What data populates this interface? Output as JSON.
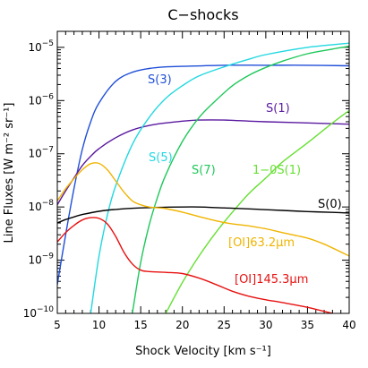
{
  "chart_data": {
    "type": "line",
    "title": "C−shocks",
    "xlabel": "Shock Velocity [km s⁻¹]",
    "ylabel": "Line Fluxes [W m⁻² sr⁻¹]",
    "xlim": [
      5,
      40
    ],
    "ylim": [
      1e-10,
      2e-05
    ],
    "yscale": "log",
    "x_ticks": [
      5,
      10,
      15,
      20,
      25,
      30,
      35,
      40
    ],
    "x_tick_labels": [
      "5",
      "10",
      "15",
      "20",
      "25",
      "30",
      "35",
      "40"
    ],
    "y_ticks": [
      1e-10,
      1e-09,
      1e-08,
      1e-07,
      1e-06,
      1e-05
    ],
    "y_tick_labels": [
      {
        "base": "10",
        "exp": "−10"
      },
      {
        "base": "10",
        "exp": "−9"
      },
      {
        "base": "10",
        "exp": "−8"
      },
      {
        "base": "10",
        "exp": "−7"
      },
      {
        "base": "10",
        "exp": "−6"
      },
      {
        "base": "10",
        "exp": "−5"
      }
    ],
    "grid": false,
    "legend": "none",
    "series": [
      {
        "name": "S(3)",
        "color": "#1f4fd8",
        "x": [
          5,
          6,
          7,
          8,
          9,
          10,
          12,
          14,
          16,
          18,
          20,
          25,
          30,
          35,
          40
        ],
        "y": [
          3.5e-10,
          3e-09,
          2.2e-08,
          1.2e-07,
          4e-07,
          9e-07,
          2.3e-06,
          3.4e-06,
          4e-06,
          4.3e-06,
          4.4e-06,
          4.6e-06,
          4.6e-06,
          4.6e-06,
          4.5e-06
        ]
      },
      {
        "name": "S(1)",
        "color": "#5a1aa0",
        "x": [
          5,
          6,
          7,
          8,
          9,
          10,
          12,
          14,
          16,
          18,
          20,
          22,
          25,
          28,
          30,
          35,
          40
        ],
        "y": [
          1.1e-08,
          2e-08,
          3.5e-08,
          6e-08,
          9e-08,
          1.25e-07,
          2e-07,
          2.8e-07,
          3.4e-07,
          3.8e-07,
          4.1e-07,
          4.3e-07,
          4.3e-07,
          4.1e-07,
          4e-07,
          3.8e-07,
          3.6e-07
        ]
      },
      {
        "name": "S(5)",
        "color": "#22d8e0",
        "x": [
          9,
          10,
          11,
          12,
          14,
          16,
          18,
          20,
          22,
          25,
          28,
          30,
          35,
          40
        ],
        "y": [
          1e-10,
          1.2e-09,
          7e-09,
          2.5e-08,
          1.5e-07,
          4.8e-07,
          1.1e-06,
          1.9e-06,
          2.9e-06,
          4.3e-06,
          6e-06,
          7.3e-06,
          1e-05,
          1.2e-05
        ]
      },
      {
        "name": "S(7)",
        "color": "#1ec85a",
        "x": [
          14,
          15,
          16,
          17,
          18,
          20,
          22,
          24,
          26,
          28,
          30,
          32,
          35,
          38,
          40
        ],
        "y": [
          1e-10,
          9e-10,
          4.5e-09,
          1.5e-08,
          4e-08,
          1.7e-07,
          4.8e-07,
          1e-06,
          1.9e-06,
          3e-06,
          4.2e-06,
          5.5e-06,
          7.6e-06,
          9.3e-06,
          1.05e-05
        ]
      },
      {
        "name": "1−0S(1)",
        "color": "#66e033",
        "x": [
          18,
          20,
          22,
          24,
          26,
          28,
          30,
          32,
          35,
          38,
          40
        ],
        "y": [
          1e-10,
          3.8e-10,
          1.2e-09,
          3.3e-09,
          8e-09,
          1.8e-08,
          3.5e-08,
          7e-08,
          1.6e-07,
          3.8e-07,
          6.5e-07
        ]
      },
      {
        "name": "S(0)",
        "color": "#000000",
        "x": [
          5,
          6,
          7,
          8,
          10,
          12,
          15,
          18,
          20,
          22,
          25,
          28,
          30,
          32,
          35,
          38,
          40
        ],
        "y": [
          5e-09,
          5.8e-09,
          6.5e-09,
          7.2e-09,
          8.3e-09,
          9e-09,
          9.6e-09,
          9.9e-09,
          1e-08,
          1e-08,
          9.6e-09,
          9.2e-09,
          8.9e-09,
          8.6e-09,
          8.2e-09,
          7.9e-09,
          7.7e-09
        ]
      },
      {
        "name": "[OI]63.2μm",
        "color": "#f0b400",
        "x": [
          5,
          6,
          7,
          8,
          9,
          10,
          11,
          12,
          13,
          14,
          15,
          16,
          18,
          20,
          22,
          25,
          28,
          30,
          32,
          35,
          37,
          40
        ],
        "y": [
          1.3e-08,
          2.2e-08,
          3.4e-08,
          5e-08,
          6.5e-08,
          6.6e-08,
          5e-08,
          3.1e-08,
          1.9e-08,
          1.3e-08,
          1.1e-08,
          1e-08,
          9.3e-09,
          8e-09,
          6.6e-09,
          5.1e-09,
          4.4e-09,
          3.9e-09,
          3.3e-09,
          2.6e-09,
          2e-09,
          1.2e-09
        ]
      },
      {
        "name": "[OI]145.3μm",
        "color": "#e81010",
        "x": [
          5,
          6,
          7,
          8,
          9,
          10,
          11,
          12,
          13,
          14,
          15,
          16,
          18,
          20,
          22,
          24,
          26,
          28,
          30,
          32,
          35,
          38,
          40
        ],
        "y": [
          2.2e-09,
          3.3e-09,
          4.5e-09,
          5.7e-09,
          6.3e-09,
          6.1e-09,
          4.8e-09,
          2.8e-09,
          1.4e-09,
          8.5e-10,
          6.5e-10,
          6.1e-10,
          5.9e-10,
          5.6e-10,
          4.6e-10,
          3.5e-10,
          2.6e-10,
          2.1e-10,
          1.8e-10,
          1.6e-10,
          1.3e-10,
          1e-10,
          8.8e-11
        ]
      }
    ]
  }
}
